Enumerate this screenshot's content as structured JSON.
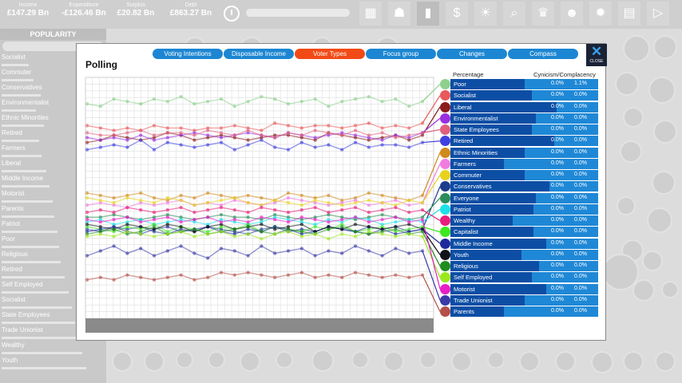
{
  "topbar": {
    "stats": [
      {
        "label": "Income",
        "value": "£147.29 Bn"
      },
      {
        "label": "Expenditure",
        "value": "-£126.46 Bn"
      },
      {
        "label": "Surplus",
        "value": "£20.82 Bn"
      },
      {
        "label": "Debt",
        "value": "£863.27 Bn"
      }
    ],
    "tools": [
      "grid-icon",
      "people-icon",
      "chart-icon",
      "dollar-icon",
      "bulb-icon",
      "search-icon",
      "trophy-icon",
      "crowd-icon",
      "gear-icon",
      "book-icon",
      "play-icon"
    ]
  },
  "sidebar": {
    "title": "POPULARITY",
    "items": [
      {
        "label": "Socialist",
        "level": 0.28
      },
      {
        "label": "Commuter",
        "level": 0.33
      },
      {
        "label": "Conservatives",
        "level": 0.41
      },
      {
        "label": "Environmentalist",
        "level": 0.36
      },
      {
        "label": "Ethnic Minorities",
        "level": 0.44
      },
      {
        "label": "Retired",
        "level": 0.39
      },
      {
        "label": "Farmers",
        "level": 0.42
      },
      {
        "label": "Liberal",
        "level": 0.47
      },
      {
        "label": "Middle Income",
        "level": 0.5
      },
      {
        "label": "Motorist",
        "level": 0.53
      },
      {
        "label": "Parents",
        "level": 0.55
      },
      {
        "label": "Patriot",
        "level": 0.58
      },
      {
        "label": "Poor",
        "level": 0.6
      },
      {
        "label": "Religious",
        "level": 0.62
      },
      {
        "label": "Retired",
        "level": 0.66
      },
      {
        "label": "Self Employed",
        "level": 0.7
      },
      {
        "label": "Socialist",
        "level": 0.73
      },
      {
        "label": "State Employees",
        "level": 0.77
      },
      {
        "label": "Trade Unionist",
        "level": 0.8
      },
      {
        "label": "Wealthy",
        "level": 0.84
      },
      {
        "label": "Youth",
        "level": 0.88
      }
    ]
  },
  "dialog": {
    "title": "Polling",
    "close_label": "CLOSE",
    "tabs": [
      {
        "label": "Voting Intentions",
        "active": false
      },
      {
        "label": "Disposable Income",
        "active": false
      },
      {
        "label": "Voter Types",
        "active": true
      },
      {
        "label": "Focus group",
        "active": false
      },
      {
        "label": "Changes",
        "active": false
      },
      {
        "label": "Compass",
        "active": false
      }
    ],
    "columns": {
      "percentage": "Percentage",
      "cynicism": "Cynicism/Complacency"
    }
  },
  "chart_data": {
    "type": "line",
    "x": [
      0,
      1,
      2,
      3,
      4,
      5,
      6,
      7,
      8,
      9,
      10,
      11,
      12,
      13,
      14,
      15,
      16,
      17,
      18,
      19,
      20,
      21,
      22,
      23,
      24,
      25
    ],
    "ylim": [
      0,
      100
    ],
    "grid": true,
    "series": [
      {
        "name": "Poor",
        "color": "#8ed08e",
        "values": [
          89,
          88,
          91,
          90,
          89,
          91,
          90,
          92,
          89,
          90,
          91,
          88,
          90,
          92,
          91,
          89,
          90,
          91,
          88,
          90,
          91,
          92,
          90,
          91,
          88,
          90
        ]
      },
      {
        "name": "Socialist",
        "color": "#e85a5a",
        "values": [
          80,
          79,
          78,
          79,
          78,
          80,
          79,
          79,
          78,
          79,
          79,
          80,
          79,
          78,
          81,
          80,
          79,
          80,
          80,
          79,
          80,
          81,
          79,
          80,
          79,
          81
        ]
      },
      {
        "name": "Liberal",
        "color": "#8b1c1c",
        "values": [
          73,
          74,
          76,
          75,
          74,
          75,
          77,
          76,
          74,
          75,
          76,
          75,
          74,
          75,
          76,
          76,
          75,
          74,
          77,
          76,
          75,
          74,
          75,
          76,
          74,
          76
        ]
      },
      {
        "name": "Environmentalist",
        "color": "#9a30e0",
        "values": [
          75,
          74,
          75,
          74,
          76,
          74,
          75,
          76,
          77,
          76,
          75,
          76,
          77,
          76,
          75,
          77,
          76,
          75,
          76,
          77,
          76,
          75,
          74,
          76,
          75,
          77
        ]
      },
      {
        "name": "State Employees",
        "color": "#e0607c",
        "values": [
          77,
          76,
          76,
          77,
          78,
          76,
          77,
          77,
          76,
          78,
          77,
          76,
          78,
          76,
          75,
          77,
          76,
          78,
          77,
          76,
          78,
          76,
          77,
          75,
          76,
          77
        ]
      },
      {
        "name": "Retired",
        "color": "#4040e0",
        "values": [
          70,
          71,
          72,
          71,
          74,
          70,
          73,
          72,
          71,
          72,
          73,
          70,
          72,
          74,
          71,
          70,
          73,
          71,
          72,
          70,
          73,
          71,
          72,
          72,
          71,
          73
        ]
      },
      {
        "name": "Ethnic Minorities",
        "color": "#d08a1e",
        "values": [
          52,
          51,
          50,
          51,
          52,
          50,
          49,
          51,
          50,
          52,
          51,
          50,
          51,
          50,
          49,
          52,
          51,
          50,
          51,
          49,
          50,
          52,
          51,
          50,
          49,
          51
        ]
      },
      {
        "name": "Farmers",
        "color": "#f07ce0",
        "values": [
          47,
          48,
          47,
          46,
          48,
          47,
          48,
          49,
          47,
          48,
          47,
          49,
          48,
          47,
          48,
          50,
          49,
          48,
          47,
          48,
          49,
          47,
          48,
          49,
          47,
          48
        ]
      },
      {
        "name": "Commuter",
        "color": "#e8d21e",
        "values": [
          50,
          49,
          48,
          50,
          49,
          48,
          50,
          49,
          47,
          48,
          49,
          50,
          48,
          47,
          49,
          48,
          47,
          49,
          48,
          47,
          48,
          49,
          48,
          47,
          49,
          48
        ]
      },
      {
        "name": "Conservatives",
        "color": "#1e3c8c",
        "values": [
          37,
          36,
          38,
          37,
          38,
          36,
          35,
          37,
          36,
          38,
          37,
          36,
          35,
          37,
          38,
          36,
          37,
          36,
          38,
          37,
          36,
          35,
          37,
          38,
          36,
          37
        ]
      },
      {
        "name": "Everyone",
        "color": "#2a8c5a",
        "values": [
          42,
          42,
          43,
          42,
          41,
          42,
          43,
          42,
          41,
          42,
          43,
          42,
          42,
          41,
          43,
          42,
          41,
          42,
          43,
          42,
          41,
          42,
          43,
          42,
          41,
          42
        ]
      },
      {
        "name": "Patriot",
        "color": "#1ee0e8",
        "values": [
          40,
          41,
          39,
          40,
          41,
          39,
          40,
          41,
          40,
          39,
          41,
          40,
          39,
          40,
          42,
          41,
          40,
          39,
          41,
          40,
          42,
          41,
          39,
          40,
          41,
          40
        ]
      },
      {
        "name": "Wealthy",
        "color": "#e81e7c",
        "values": [
          44,
          45,
          44,
          46,
          45,
          44,
          45,
          46,
          44,
          45,
          46,
          45,
          44,
          46,
          45,
          44,
          45,
          46,
          44,
          45,
          46,
          44,
          45,
          46,
          44,
          45
        ]
      },
      {
        "name": "Capitalist",
        "color": "#3ce81e",
        "values": [
          38,
          37,
          36,
          38,
          37,
          39,
          36,
          38,
          37,
          36,
          38,
          37,
          39,
          36,
          38,
          37,
          36,
          38,
          37,
          39,
          36,
          37,
          38,
          36,
          37,
          38
        ]
      },
      {
        "name": "Middle Income",
        "color": "#1e2a9c",
        "values": [
          36,
          37,
          38,
          36,
          35,
          37,
          38,
          36,
          37,
          38,
          36,
          35,
          37,
          36,
          38,
          37,
          35,
          36,
          38,
          37,
          36,
          38,
          37,
          35,
          36,
          37
        ]
      },
      {
        "name": "Youth",
        "color": "#101418",
        "values": [
          39,
          38,
          37,
          39,
          38,
          37,
          39,
          38,
          36,
          38,
          39,
          37,
          38,
          39,
          37,
          38,
          39,
          36,
          38,
          37,
          39,
          38,
          37,
          38,
          39,
          37
        ]
      },
      {
        "name": "Religious",
        "color": "#1e8c1e",
        "values": [
          35,
          36,
          37,
          35,
          36,
          38,
          35,
          36,
          37,
          35,
          36,
          37,
          38,
          36,
          35,
          37,
          36,
          35,
          37,
          38,
          36,
          35,
          36,
          37,
          35,
          36
        ]
      },
      {
        "name": "Self Employed",
        "color": "#9ce81e",
        "values": [
          34,
          35,
          34,
          36,
          35,
          34,
          35,
          36,
          34,
          35,
          36,
          34,
          35,
          33,
          35,
          36,
          34,
          35,
          33,
          35,
          34,
          36,
          35,
          34,
          35,
          34
        ]
      },
      {
        "name": "Motorist",
        "color": "#e81ec8",
        "values": [
          41,
          40,
          41,
          42,
          40,
          41,
          42,
          40,
          41,
          42,
          40,
          41,
          40,
          42,
          41,
          40,
          42,
          41,
          40,
          41,
          42,
          40,
          41,
          42,
          40,
          41
        ]
      },
      {
        "name": "Trade Unionist",
        "color": "#3a3aa8",
        "values": [
          26,
          28,
          30,
          27,
          29,
          26,
          28,
          30,
          27,
          25,
          29,
          28,
          26,
          30,
          27,
          28,
          29,
          26,
          28,
          27,
          30,
          28,
          26,
          29,
          27,
          28
        ]
      },
      {
        "name": "Parents",
        "color": "#b4504a",
        "values": [
          16,
          17,
          16,
          18,
          17,
          16,
          17,
          18,
          16,
          17,
          19,
          18,
          19,
          18,
          17,
          18,
          19,
          17,
          18,
          17,
          19,
          18,
          17,
          18,
          17,
          18
        ]
      }
    ]
  },
  "legend_rows": [
    {
      "name": "Poor",
      "color": "#8ed08e",
      "percentage": "0.0%",
      "cynicism": "1.1%",
      "fill": 0.5
    },
    {
      "name": "Socialist",
      "color": "#e85a5a",
      "percentage": "0.0%",
      "cynicism": "0.0%",
      "fill": 0.55
    },
    {
      "name": "Liberal",
      "color": "#8b1c1c",
      "percentage": "0.0%",
      "cynicism": "0.0%",
      "fill": 0.72
    },
    {
      "name": "Environmentalist",
      "color": "#9a30e0",
      "percentage": "0.0%",
      "cynicism": "0.0%",
      "fill": 0.58
    },
    {
      "name": "State Employees",
      "color": "#e0607c",
      "percentage": "0.0%",
      "cynicism": "0.0%",
      "fill": 0.55
    },
    {
      "name": "Retired",
      "color": "#4040e0",
      "percentage": "0.0%",
      "cynicism": "0.0%",
      "fill": 0.7
    },
    {
      "name": "Ethnic Minorities",
      "color": "#d08a1e",
      "percentage": "0.0%",
      "cynicism": "0.0%",
      "fill": 0.5
    },
    {
      "name": "Farmers",
      "color": "#f07ce0",
      "percentage": "0.0%",
      "cynicism": "0.0%",
      "fill": 0.36
    },
    {
      "name": "Commuter",
      "color": "#e8d21e",
      "percentage": "0.0%",
      "cynicism": "0.0%",
      "fill": 0.5
    },
    {
      "name": "Conservatives",
      "color": "#1e3c8c",
      "percentage": "0.0%",
      "cynicism": "0.0%",
      "fill": 0.67
    },
    {
      "name": "Everyone",
      "color": "#2a8c5a",
      "percentage": "0.0%",
      "cynicism": "0.0%",
      "fill": 0.58
    },
    {
      "name": "Patriot",
      "color": "#1ee0e8",
      "percentage": "0.0%",
      "cynicism": "0.0%",
      "fill": 0.56
    },
    {
      "name": "Wealthy",
      "color": "#e81e7c",
      "percentage": "0.0%",
      "cynicism": "0.0%",
      "fill": 0.42
    },
    {
      "name": "Capitalist",
      "color": "#3ce81e",
      "percentage": "0.0%",
      "cynicism": "0.0%",
      "fill": 0.56
    },
    {
      "name": "Middle Income",
      "color": "#1e2a9c",
      "percentage": "0.0%",
      "cynicism": "0.0%",
      "fill": 0.65
    },
    {
      "name": "Youth",
      "color": "#101418",
      "percentage": "0.0%",
      "cynicism": "0.0%",
      "fill": 0.48
    },
    {
      "name": "Religious",
      "color": "#1e8c1e",
      "percentage": "0.0%",
      "cynicism": "0.0%",
      "fill": 0.6
    },
    {
      "name": "Self Employed",
      "color": "#9ce81e",
      "percentage": "0.0%",
      "cynicism": "0.0%",
      "fill": 0.55
    },
    {
      "name": "Motorist",
      "color": "#e81ec8",
      "percentage": "0.0%",
      "cynicism": "0.0%",
      "fill": 0.65
    },
    {
      "name": "Trade Unionist",
      "color": "#3a3aa8",
      "percentage": "0.0%",
      "cynicism": "0.0%",
      "fill": 0.5
    },
    {
      "name": "Parents",
      "color": "#b4504a",
      "percentage": "0.0%",
      "cynicism": "0.0%",
      "fill": 0.36
    }
  ]
}
